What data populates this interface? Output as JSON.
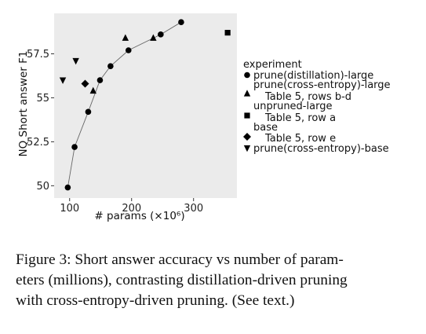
{
  "chart_data": {
    "type": "scatter",
    "xlabel": "# params (×10⁶)",
    "ylabel": "NQ Short answer F1",
    "xlim": [
      75,
      370
    ],
    "ylim": [
      49.3,
      59.8
    ],
    "x_ticks": [
      100,
      200,
      300
    ],
    "y_ticks": [
      50,
      52.5,
      55,
      57.5
    ],
    "y_tick_labels": [
      "50",
      "52.5",
      "55",
      "57.5"
    ],
    "legend_title": "experiment",
    "legend_position": "right",
    "grid": false,
    "series": [
      {
        "key": "pd",
        "name": "prune(distillation)-large",
        "marker": "circle",
        "connected": true,
        "points": [
          {
            "x": 97,
            "y": 49.9
          },
          {
            "x": 108,
            "y": 52.2
          },
          {
            "x": 130,
            "y": 54.2
          },
          {
            "x": 149,
            "y": 56.0
          },
          {
            "x": 166,
            "y": 56.8
          },
          {
            "x": 195,
            "y": 57.7
          },
          {
            "x": 247,
            "y": 58.6
          },
          {
            "x": 280,
            "y": 59.3
          }
        ]
      },
      {
        "key": "pcl",
        "name": "prune(cross-entropy)-large",
        "sublabel": "Table 5, rows b-d",
        "marker": "triangle-up",
        "connected": false,
        "points": [
          {
            "x": 138,
            "y": 55.4
          },
          {
            "x": 190,
            "y": 58.4
          },
          {
            "x": 235,
            "y": 58.4
          }
        ]
      },
      {
        "key": "ul",
        "name": "unpruned-large",
        "sublabel": "Table 5, row a",
        "marker": "square",
        "connected": false,
        "points": [
          {
            "x": 355,
            "y": 58.7
          }
        ]
      },
      {
        "key": "b",
        "name": "base",
        "sublabel": "Table 5, row e",
        "marker": "diamond",
        "connected": false,
        "points": [
          {
            "x": 125,
            "y": 55.8
          }
        ]
      },
      {
        "key": "pcb",
        "name": "prune(cross-entropy)-base",
        "marker": "triangle-down",
        "connected": false,
        "points": [
          {
            "x": 89,
            "y": 56.0
          },
          {
            "x": 110,
            "y": 57.1
          }
        ]
      }
    ]
  },
  "caption": {
    "line1": "Figure 3:  Short answer accuracy vs number of param-",
    "line2": "eters (millions), contrasting distillation-driven pruning",
    "line3": "with cross-entropy-driven pruning. (See text.)"
  }
}
